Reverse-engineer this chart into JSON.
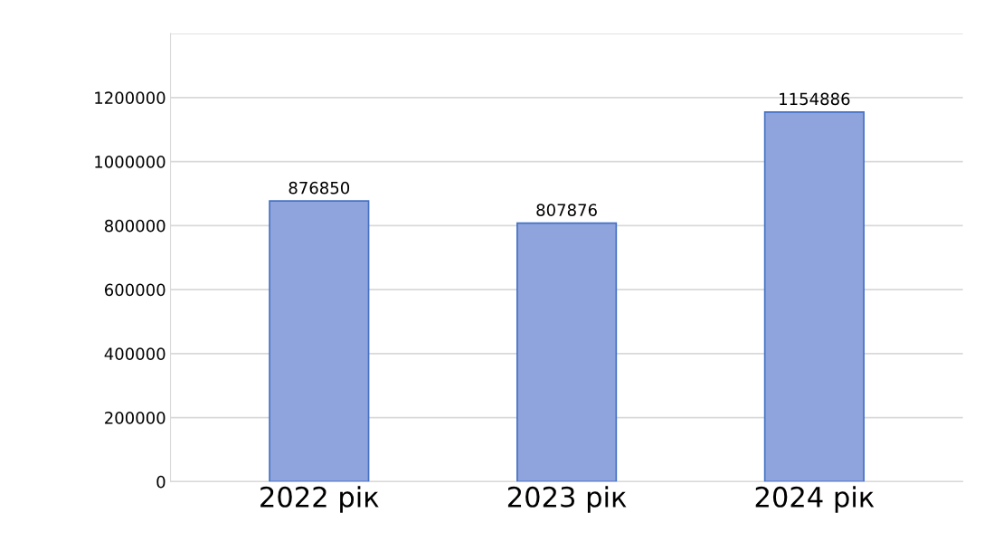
{
  "chart_data": {
    "type": "bar",
    "categories": [
      "2022 рік",
      "2023 рік",
      "2024 рік"
    ],
    "values": [
      876850,
      807876,
      1154886
    ],
    "color": "#8fa3dc",
    "ylim": [
      0,
      1400000
    ],
    "yticks": [
      0,
      200000,
      400000,
      600000,
      800000,
      1000000,
      1200000,
      {
        "value": 1400000,
        "label": null
      }
    ],
    "grid": "y",
    "data_labels": true
  }
}
